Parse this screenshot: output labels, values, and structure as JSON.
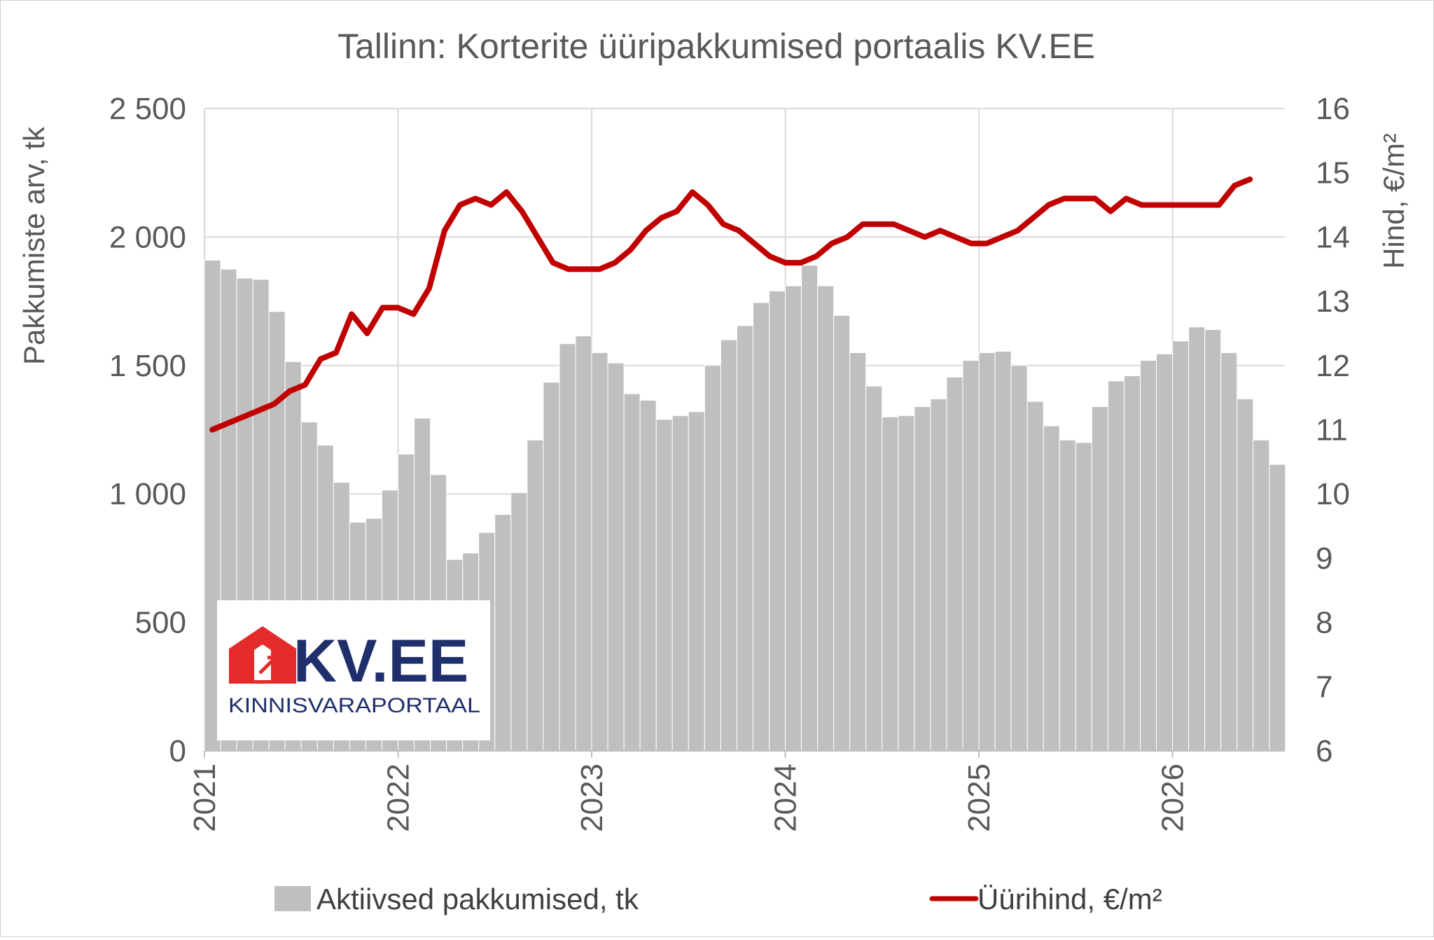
{
  "chart_data": {
    "type": "bar+line",
    "title": "Tallinn: Korterite üüripakkumised portaalis KV.EE",
    "ylabel_left": "Pakkumiste arv, tk",
    "ylabel_right": "Hind, €/m²",
    "ylim_left": [
      0,
      2500
    ],
    "ylim_right": [
      6,
      16
    ],
    "yticks_left": [
      0,
      500,
      1000,
      1500,
      2000,
      2500
    ],
    "ytick_labels_left": [
      "0",
      "500",
      "1 000",
      "1 500",
      "2 000",
      "2 500"
    ],
    "yticks_right": [
      6,
      7,
      8,
      9,
      10,
      11,
      12,
      13,
      14,
      15,
      16
    ],
    "ytick_labels_right": [
      "6",
      "7",
      "8",
      "9",
      "10",
      "11",
      "12",
      "13",
      "14",
      "15",
      "16"
    ],
    "xlim": [
      2021,
      2026.58
    ],
    "xticks": [
      2021,
      2022,
      2023,
      2024,
      2025,
      2026
    ],
    "xtick_labels": [
      "2021",
      "2022",
      "2023",
      "2024",
      "2025",
      "2026"
    ],
    "grid": true,
    "legend_position": "bottom",
    "colors": {
      "bars": "#bfbfbf",
      "line": "#c00000"
    },
    "bars": {
      "name": "Aktiivsed pakkumised, tk",
      "x_start": 2021,
      "step": 0.08333,
      "values": [
        1910,
        1875,
        1840,
        1835,
        1710,
        1515,
        1280,
        1190,
        1045,
        890,
        905,
        1015,
        1155,
        1295,
        1075,
        745,
        770,
        850,
        920,
        1005,
        1210,
        1435,
        1585,
        1615,
        1550,
        1510,
        1390,
        1365,
        1290,
        1305,
        1320,
        1500,
        1600,
        1655,
        1745,
        1790,
        1810,
        1890,
        1810,
        1695,
        1550,
        1420,
        1300,
        1305,
        1340,
        1370,
        1455,
        1520,
        1550,
        1555,
        1500,
        1360,
        1265,
        1210,
        1200,
        1340,
        1440,
        1460,
        1520,
        1545,
        1595,
        1650,
        1640,
        1550,
        1370,
        1210,
        1115
      ]
    },
    "line": {
      "name": "Üürihind, €/m²",
      "x_start": 2021.04,
      "step": 0.08,
      "values": [
        11.0,
        11.1,
        11.2,
        11.3,
        11.4,
        11.6,
        11.7,
        12.1,
        12.2,
        12.8,
        12.5,
        12.9,
        12.9,
        12.8,
        13.2,
        14.1,
        14.5,
        14.6,
        14.5,
        14.7,
        14.4,
        14.0,
        13.6,
        13.5,
        13.5,
        13.5,
        13.6,
        13.8,
        14.1,
        14.3,
        14.4,
        14.7,
        14.5,
        14.2,
        14.1,
        13.9,
        13.7,
        13.6,
        13.6,
        13.7,
        13.9,
        14.0,
        14.2,
        14.2,
        14.2,
        14.1,
        14.0,
        14.1,
        14.0,
        13.9,
        13.9,
        14.0,
        14.1,
        14.3,
        14.5,
        14.6,
        14.6,
        14.6,
        14.4,
        14.6,
        14.5,
        14.5,
        14.5,
        14.5,
        14.5,
        14.5,
        14.8,
        14.9
      ]
    }
  },
  "logo": {
    "wordmark": "KV.EE",
    "tagline": "KINNISVARAPORTAAL",
    "colors": {
      "house": "#e32b2b",
      "text": "#1f2f6b"
    }
  }
}
